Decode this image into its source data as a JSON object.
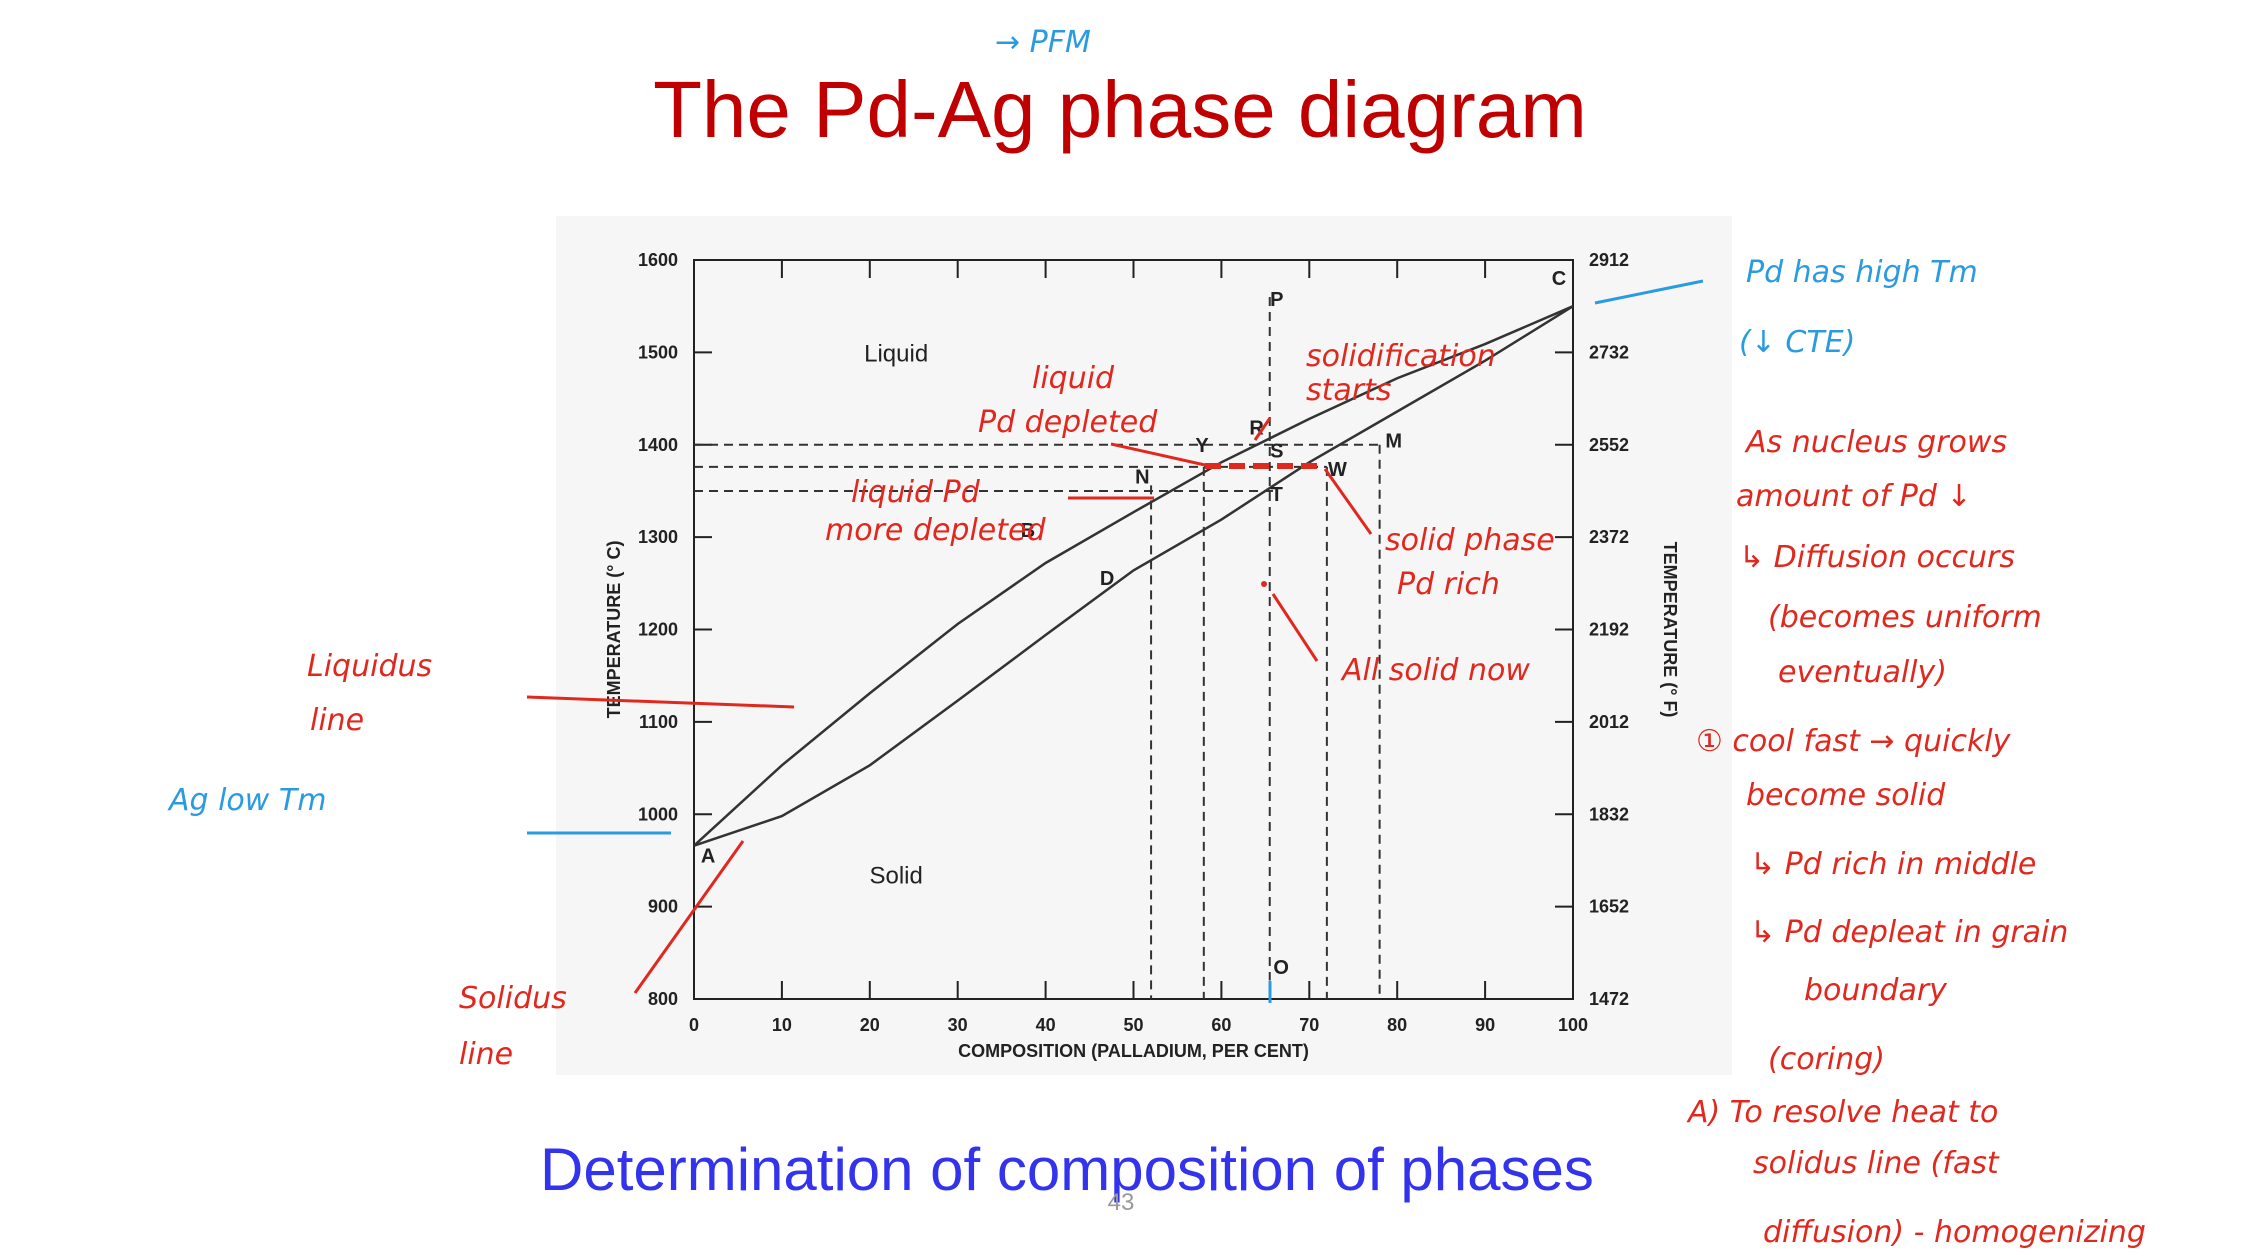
{
  "title": "The Pd-Ag phase diagram",
  "subtitle": "Determination of composition of phases",
  "page_number": "43",
  "chart_data": {
    "type": "line",
    "x": [
      0,
      10,
      20,
      30,
      40,
      50,
      60,
      70,
      80,
      90,
      100
    ],
    "series": [
      {
        "color": "#333333",
        "values": [
          966,
          1053,
          1131,
          1206,
          1272,
          1327,
          1381,
          1428,
          1472,
          1509,
          1550
        ]
      },
      {
        "color": "#333333",
        "values": [
          966,
          998,
          1053,
          1123,
          1194,
          1264,
          1319,
          1381,
          1436,
          1491,
          1550
        ]
      }
    ],
    "xlabel": "COMPOSITION (PALLADIUM, PER CENT)",
    "ylabel": "TEMPERATURE (° C)",
    "y2label": "TEMPERATURE (° F)",
    "xlim": [
      0,
      100
    ],
    "xticks": [
      0,
      10,
      20,
      30,
      40,
      50,
      60,
      70,
      80,
      90,
      100
    ],
    "ylim": [
      800,
      1600
    ],
    "yticks": [
      800,
      900,
      1000,
      1100,
      1200,
      1300,
      1400,
      1500,
      1600
    ],
    "y2lim": [
      1472,
      2912
    ],
    "y2ticks": [
      1472,
      1652,
      1832,
      2012,
      2192,
      2372,
      2552,
      2732,
      2912
    ],
    "region_labels": [
      {
        "text": "Liquid",
        "x": 23,
        "y": 1490
      },
      {
        "text": "Solid",
        "x": 23,
        "y": 925
      }
    ],
    "point_labels": [
      {
        "text": "A",
        "x": 1.6,
        "y": 948
      },
      {
        "text": "B",
        "x": 38,
        "y": 1300
      },
      {
        "text": "C",
        "x": 98.4,
        "y": 1573
      },
      {
        "text": "D",
        "x": 47,
        "y": 1248
      },
      {
        "text": "N",
        "x": 51,
        "y": 1358
      },
      {
        "text": "R",
        "x": 64,
        "y": 1411
      },
      {
        "text": "S",
        "x": 66.3,
        "y": 1386
      },
      {
        "text": "T",
        "x": 66.3,
        "y": 1339
      },
      {
        "text": "W",
        "x": 73.2,
        "y": 1366
      },
      {
        "text": "M",
        "x": 79.6,
        "y": 1397
      },
      {
        "text": "P",
        "x": 66.3,
        "y": 1550
      },
      {
        "text": "O",
        "x": 66.8,
        "y": 827
      },
      {
        "text": "Y",
        "x": 57.8,
        "y": 1392
      }
    ],
    "reference_lines": [
      {
        "x": [
          0,
          78
        ],
        "y": [
          1400,
          1400
        ]
      },
      {
        "x": [
          0,
          72
        ],
        "y": [
          1376,
          1376
        ]
      },
      {
        "x": [
          0,
          66
        ],
        "y": [
          1350,
          1350
        ]
      },
      {
        "x": [
          52,
          52
        ],
        "y": [
          1356,
          800
        ]
      },
      {
        "x": [
          58,
          58
        ],
        "y": [
          1376,
          800
        ]
      },
      {
        "x": [
          65.5,
          65.5
        ],
        "y": [
          1560,
          820
        ]
      },
      {
        "x": [
          72,
          72
        ],
        "y": [
          1376,
          800
        ]
      },
      {
        "x": [
          78,
          78
        ],
        "y": [
          1400,
          800
        ]
      }
    ]
  },
  "annotations": [
    "→ PFM",
    "liquid",
    "Pd depleted",
    "solidification",
    "starts",
    "liquid Pd",
    "more depleted",
    "solid phase",
    "Pd rich",
    "All solid now",
    "Liquidus",
    "line",
    "Solidus",
    "line",
    "Pd has high Tm",
    "(↓ CTE)",
    "Ag low Tm",
    "As nucleus grows",
    "amount of Pd ↓",
    "↳ Diffusion occurs",
    "(becomes uniform",
    "eventually)",
    "① cool fast → quickly",
    "become solid",
    "↳ Pd rich in middle",
    "↳ Pd depleat in grain",
    "boundary",
    "(coring)",
    "A) To resolve heat to",
    "solidus line (fast",
    "diffusion) - homogenizing"
  ]
}
